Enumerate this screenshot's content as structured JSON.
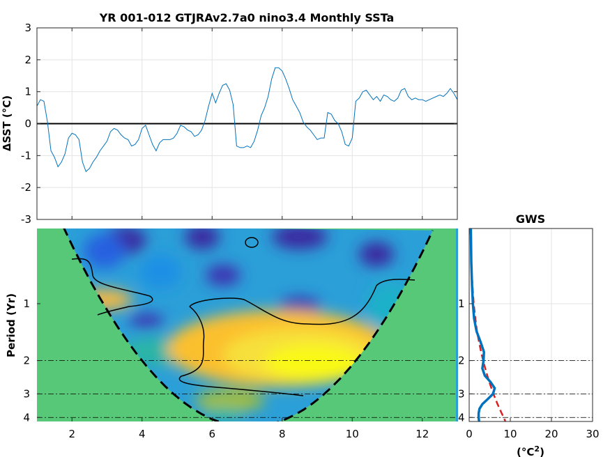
{
  "chart_data": [
    {
      "type": "line",
      "title": "YR 001-012 GTJRAv2.7a0 nino3.4 Monthly SSTa",
      "ylabel": "ΔSST (°C)",
      "xlim": [
        1,
        13
      ],
      "ylim": [
        -3,
        3
      ],
      "xticks": [
        2,
        4,
        6,
        8,
        10,
        12
      ],
      "yticks": [
        -3,
        -2,
        -1,
        0,
        1,
        2,
        3
      ],
      "grid": true,
      "zero_line": true,
      "line_color": "#0072bd",
      "series": [
        {
          "x": [
            1.0,
            1.1,
            1.2,
            1.3,
            1.4,
            1.5,
            1.6,
            1.7,
            1.8,
            1.9,
            2.0,
            2.1,
            2.2,
            2.3,
            2.4,
            2.5,
            2.6,
            2.7,
            2.8,
            2.9,
            3.0,
            3.1,
            3.2,
            3.3,
            3.4,
            3.5,
            3.6,
            3.7,
            3.8,
            3.9,
            4.0,
            4.1,
            4.2,
            4.3,
            4.4,
            4.5,
            4.6,
            4.7,
            4.8,
            4.9,
            5.0,
            5.1,
            5.2,
            5.3,
            5.4,
            5.5,
            5.6,
            5.7,
            5.8,
            5.9,
            6.0,
            6.1,
            6.2,
            6.3,
            6.4,
            6.5,
            6.6,
            6.7,
            6.8,
            6.9,
            7.0,
            7.1,
            7.2,
            7.3,
            7.4,
            7.5,
            7.6,
            7.7,
            7.8,
            7.9,
            8.0,
            8.1,
            8.2,
            8.3,
            8.4,
            8.5,
            8.6,
            8.7,
            8.8,
            8.9,
            9.0,
            9.1,
            9.2,
            9.3,
            9.4,
            9.5,
            9.6,
            9.7,
            9.8,
            9.9,
            10.0,
            10.1,
            10.2,
            10.3,
            10.4,
            10.5,
            10.6,
            10.7,
            10.8,
            10.9,
            11.0,
            11.1,
            11.2,
            11.3,
            11.4,
            11.5,
            11.6,
            11.7,
            11.8,
            11.9,
            12.0,
            12.1,
            12.2,
            12.3,
            12.4,
            12.5,
            12.6,
            12.7,
            12.8,
            12.9,
            13.0
          ],
          "y": [
            0.55,
            0.75,
            0.7,
            0.05,
            -0.85,
            -1.05,
            -1.35,
            -1.2,
            -0.95,
            -0.45,
            -0.3,
            -0.35,
            -0.5,
            -1.2,
            -1.5,
            -1.4,
            -1.2,
            -1.05,
            -0.85,
            -0.7,
            -0.55,
            -0.25,
            -0.15,
            -0.2,
            -0.35,
            -0.45,
            -0.5,
            -0.7,
            -0.65,
            -0.5,
            -0.15,
            -0.05,
            -0.35,
            -0.65,
            -0.85,
            -0.6,
            -0.5,
            -0.5,
            -0.5,
            -0.45,
            -0.3,
            -0.05,
            -0.1,
            -0.2,
            -0.25,
            -0.4,
            -0.35,
            -0.2,
            0.1,
            0.55,
            0.95,
            0.65,
            0.95,
            1.2,
            1.25,
            1.05,
            0.6,
            -0.7,
            -0.75,
            -0.75,
            -0.7,
            -0.75,
            -0.55,
            -0.2,
            0.25,
            0.5,
            0.85,
            1.4,
            1.75,
            1.75,
            1.65,
            1.4,
            1.1,
            0.75,
            0.55,
            0.35,
            0.05,
            -0.1,
            -0.2,
            -0.35,
            -0.5,
            -0.45,
            -0.45,
            0.35,
            0.3,
            0.1,
            0.0,
            -0.25,
            -0.65,
            -0.7,
            -0.45,
            0.7,
            0.8,
            1.0,
            1.05,
            0.9,
            0.75,
            0.85,
            0.7,
            0.9,
            0.85,
            0.75,
            0.7,
            0.8,
            1.05,
            1.1,
            0.85,
            0.75,
            0.8,
            0.75,
            0.75,
            0.7,
            0.75,
            0.8,
            0.85,
            0.9,
            0.85,
            0.95,
            1.1,
            0.95,
            0.75
          ]
        }
      ]
    },
    {
      "type": "heatmap",
      "ylabel": "Period (Yr)",
      "xlim": [
        1,
        13
      ],
      "xticks": [
        2,
        4,
        6,
        8,
        10,
        12
      ],
      "yticks": [
        1,
        2,
        3,
        4
      ],
      "yscale": "log2",
      "ylim_period": [
        0.4,
        4.2
      ],
      "reference_periods": [
        2,
        3,
        4
      ],
      "colormap": "parula",
      "coi_color": "#56c878",
      "coi_style": "dashed",
      "significance_contour_color": "#000000"
    },
    {
      "type": "line",
      "title": "GWS",
      "xlabel": "(°C",
      "xlabel_sup": "2",
      "xlabel_end": ")",
      "xlim": [
        0,
        30
      ],
      "xticks": [
        0,
        10,
        20,
        30
      ],
      "yticks": [
        1,
        2,
        3,
        4
      ],
      "yscale": "log2",
      "reference_periods": [
        2,
        3,
        4
      ],
      "series": [
        {
          "style": "solid",
          "color": "#0072bd",
          "period": [
            0.4,
            0.6,
            0.8,
            1.0,
            1.2,
            1.4,
            1.6,
            1.8,
            2.0,
            2.2,
            2.4,
            2.6,
            2.8,
            3.0,
            3.2,
            3.4,
            3.6,
            3.8,
            4.0,
            4.2
          ],
          "power": [
            0.4,
            0.5,
            0.7,
            0.9,
            1.2,
            1.8,
            2.8,
            3.6,
            3.5,
            3.2,
            3.8,
            5.2,
            6.2,
            5.8,
            4.5,
            3.2,
            2.5,
            2.3,
            2.3,
            2.4
          ]
        },
        {
          "style": "dashed",
          "color": "#d92121",
          "period": [
            0.4,
            0.6,
            0.8,
            1.0,
            1.2,
            1.4,
            1.6,
            1.8,
            2.0,
            2.2,
            2.4,
            2.6,
            2.8,
            3.0,
            3.2,
            3.4,
            3.6,
            3.8,
            4.0,
            4.2
          ],
          "power": [
            0.3,
            0.5,
            0.8,
            1.1,
            1.5,
            1.9,
            2.4,
            2.9,
            3.4,
            3.9,
            4.4,
            4.9,
            5.4,
            5.9,
            6.4,
            6.9,
            7.4,
            7.9,
            8.4,
            8.8
          ]
        }
      ]
    }
  ]
}
